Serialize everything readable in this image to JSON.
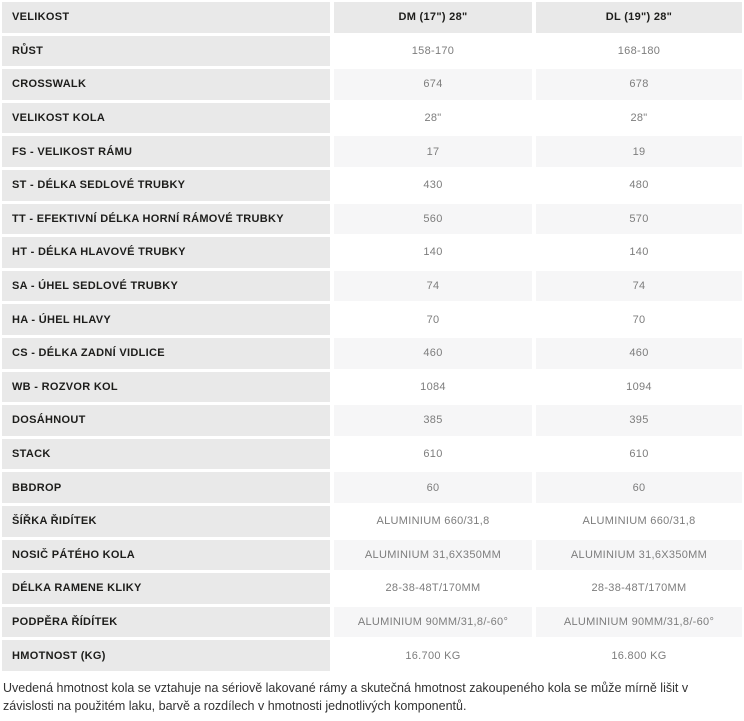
{
  "table": {
    "header": {
      "label": "VELIKOST",
      "col1": "DM (17\") 28\"",
      "col2": "DL (19\") 28\""
    },
    "rows": [
      {
        "label": "RŮST",
        "col1": "158-170",
        "col2": "168-180"
      },
      {
        "label": "CROSSWALK",
        "col1": "674",
        "col2": "678"
      },
      {
        "label": "VELIKOST KOLA",
        "col1": "28\"",
        "col2": "28\""
      },
      {
        "label": "FS - VELIKOST RÁMU",
        "col1": "17",
        "col2": "19"
      },
      {
        "label": "ST - DÉLKA SEDLOVÉ TRUBKY",
        "col1": "430",
        "col2": "480"
      },
      {
        "label": "TT - EFEKTIVNÍ DÉLKA HORNÍ RÁMOVÉ TRUBKY",
        "col1": "560",
        "col2": "570"
      },
      {
        "label": "HT - DÉLKA HLAVOVÉ TRUBKY",
        "col1": "140",
        "col2": "140"
      },
      {
        "label": "SA - ÚHEL SEDLOVÉ TRUBKY",
        "col1": "74",
        "col2": "74"
      },
      {
        "label": "HA - ÚHEL HLAVY",
        "col1": "70",
        "col2": "70"
      },
      {
        "label": "CS - DÉLKA ZADNÍ VIDLICE",
        "col1": "460",
        "col2": "460"
      },
      {
        "label": "WB - ROZVOR KOL",
        "col1": "1084",
        "col2": "1094"
      },
      {
        "label": "DOSÁHNOUT",
        "col1": "385",
        "col2": "395"
      },
      {
        "label": "STACK",
        "col1": "610",
        "col2": "610"
      },
      {
        "label": "BBDROP",
        "col1": "60",
        "col2": "60"
      },
      {
        "label": "ŠÍŘKA ŘIDÍTEK",
        "col1": "ALUMINIUM 660/31,8",
        "col2": "ALUMINIUM 660/31,8"
      },
      {
        "label": "NOSIČ PÁTÉHO KOLA",
        "col1": "ALUMINIUM 31,6X350MM",
        "col2": "ALUMINIUM 31,6X350MM"
      },
      {
        "label": "DÉLKA RAMENE KLIKY",
        "col1": "28-38-48T/170MM",
        "col2": "28-38-48T/170MM"
      },
      {
        "label": "PODPĚRA ŘÍDÍTEK",
        "col1": "ALUMINIUM 90MM/31,8/-60°",
        "col2": "ALUMINIUM 90MM/31,8/-60°"
      },
      {
        "label": "HMOTNOST (KG)",
        "col1": "16.700 KG",
        "col2": "16.800 KG"
      }
    ]
  },
  "footer": {
    "note": "Uvedená hmotnost kola se vztahuje na sériově lakované rámy a skutečná hmotnost zakoupeného kola se může mírně lišit v závislosti na použitém laku, barvě a rozdílech v hmotnosti jednotlivých komponentů."
  },
  "colors": {
    "label_bg": "#e9e9e9",
    "row_alt_bg": "#f6f6f7",
    "row_bg": "#ffffff",
    "label_text": "#1d1d1b",
    "value_text": "#7d7d7d",
    "note_text": "#333333"
  }
}
